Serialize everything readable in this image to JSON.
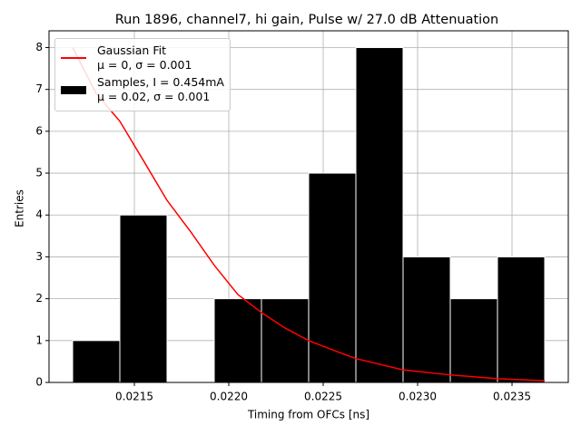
{
  "chart_data": {
    "type": "histogram",
    "title": "Run 1896, channel7, hi gain, Pulse w/ 27.0 dB Attenuation",
    "xlabel": "Timing from OFCs [ns]",
    "ylabel": "Entries",
    "xlim": [
      0.021048,
      0.023798
    ],
    "ylim": [
      0,
      8.4
    ],
    "xticks": [
      0.0215,
      {
        "value": 0.022,
        "label": "0.0220"
      },
      0.0225,
      {
        "value": 0.023,
        "label": "0.0230"
      },
      0.0235
    ],
    "yticks": [
      0,
      1,
      2,
      3,
      4,
      5,
      6,
      7,
      8
    ],
    "grid": true,
    "legend": "upper left",
    "series": [
      {
        "name": "Gaussian Fit\nμ = 0, σ = 0.001",
        "type": "line",
        "color": "#ff0000",
        "x": [
          0.021173,
          0.021298,
          0.021423,
          0.021548,
          0.021673,
          0.021798,
          0.021923,
          0.022048,
          0.022173,
          0.022298,
          0.022423,
          0.022548,
          0.022673,
          0.022923,
          0.023173,
          0.023423,
          0.023673
        ],
        "values": [
          8.0,
          6.9,
          6.24,
          5.3,
          4.35,
          3.6,
          2.8,
          2.1,
          1.67,
          1.3,
          1.0,
          0.78,
          0.57,
          0.3,
          0.18,
          0.09,
          0.04
        ]
      },
      {
        "name": "Samples, I = 0.454mA\nμ = 0.02, σ = 0.001",
        "type": "histogram",
        "color": "#000000",
        "bins": [
          0.021173,
          0.021423,
          0.021673,
          0.021923,
          0.022173,
          0.022423,
          0.022673,
          0.022923,
          0.023173,
          0.023423,
          0.023673
        ],
        "values": [
          1,
          4,
          0,
          2,
          2,
          5,
          8,
          3,
          2,
          3
        ]
      }
    ]
  }
}
